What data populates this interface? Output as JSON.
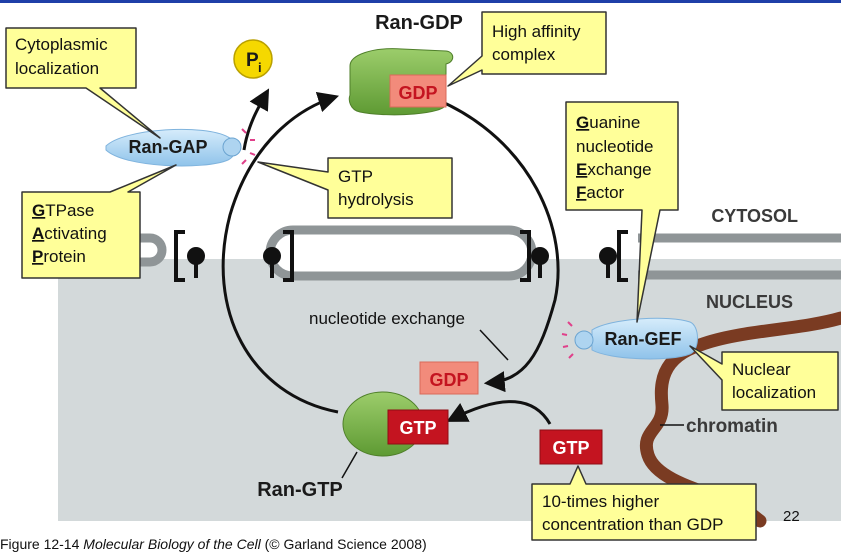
{
  "callouts": {
    "cytoplasmic": [
      "Cytoplasmic",
      "localization"
    ],
    "high_affinity": [
      "High affinity",
      "complex"
    ],
    "gtp_hydrolysis": [
      "GTP",
      "hydrolysis"
    ],
    "gap": [
      [
        "G",
        "TPase"
      ],
      [
        "A",
        "ctivating"
      ],
      [
        "P",
        "rotein"
      ]
    ],
    "gef": [
      [
        "G",
        "uanine"
      ],
      [
        "",
        "nucleotide"
      ],
      [
        "E",
        "xchange"
      ],
      [
        "F",
        "actor"
      ]
    ],
    "nuclear": [
      "Nuclear",
      "localization"
    ],
    "concentration": [
      "10-times higher",
      "concentration than GDP"
    ]
  },
  "labels": {
    "ran_gdp": "Ran-GDP",
    "ran_gap": "Ran-GAP",
    "ran_gef": "Ran-GEF",
    "ran_gtp": "Ran-GTP",
    "pi_main": "P",
    "pi_sub": "i",
    "gdp_top": "GDP",
    "gdp_bottom": "GDP",
    "gtp_bound": "GTP",
    "gtp_free": "GTP",
    "cytosol": "CYTOSOL",
    "nucleus": "NUCLEUS",
    "chromatin": "chromatin",
    "nucleotide_exchange": "nucleotide exchange"
  },
  "caption": {
    "prefix": "Figure 12-14 ",
    "title": "Molecular Biology of the Cell",
    "suffix": " (© Garland Science 2008)"
  },
  "page_number": "22",
  "colors": {
    "header_bar": "#1f3fa8",
    "callout_fill": "#ffff99",
    "nucleus_bg": "#d3d9da",
    "membrane": "#8f9597",
    "gdp_box": "#f28b7b",
    "gtp_box": "#c41420",
    "ran_green": "#7ab547",
    "chromatin": "#7a3b22",
    "gap_blue": "#aed4f0",
    "pi_yellow": "#f5d800"
  }
}
